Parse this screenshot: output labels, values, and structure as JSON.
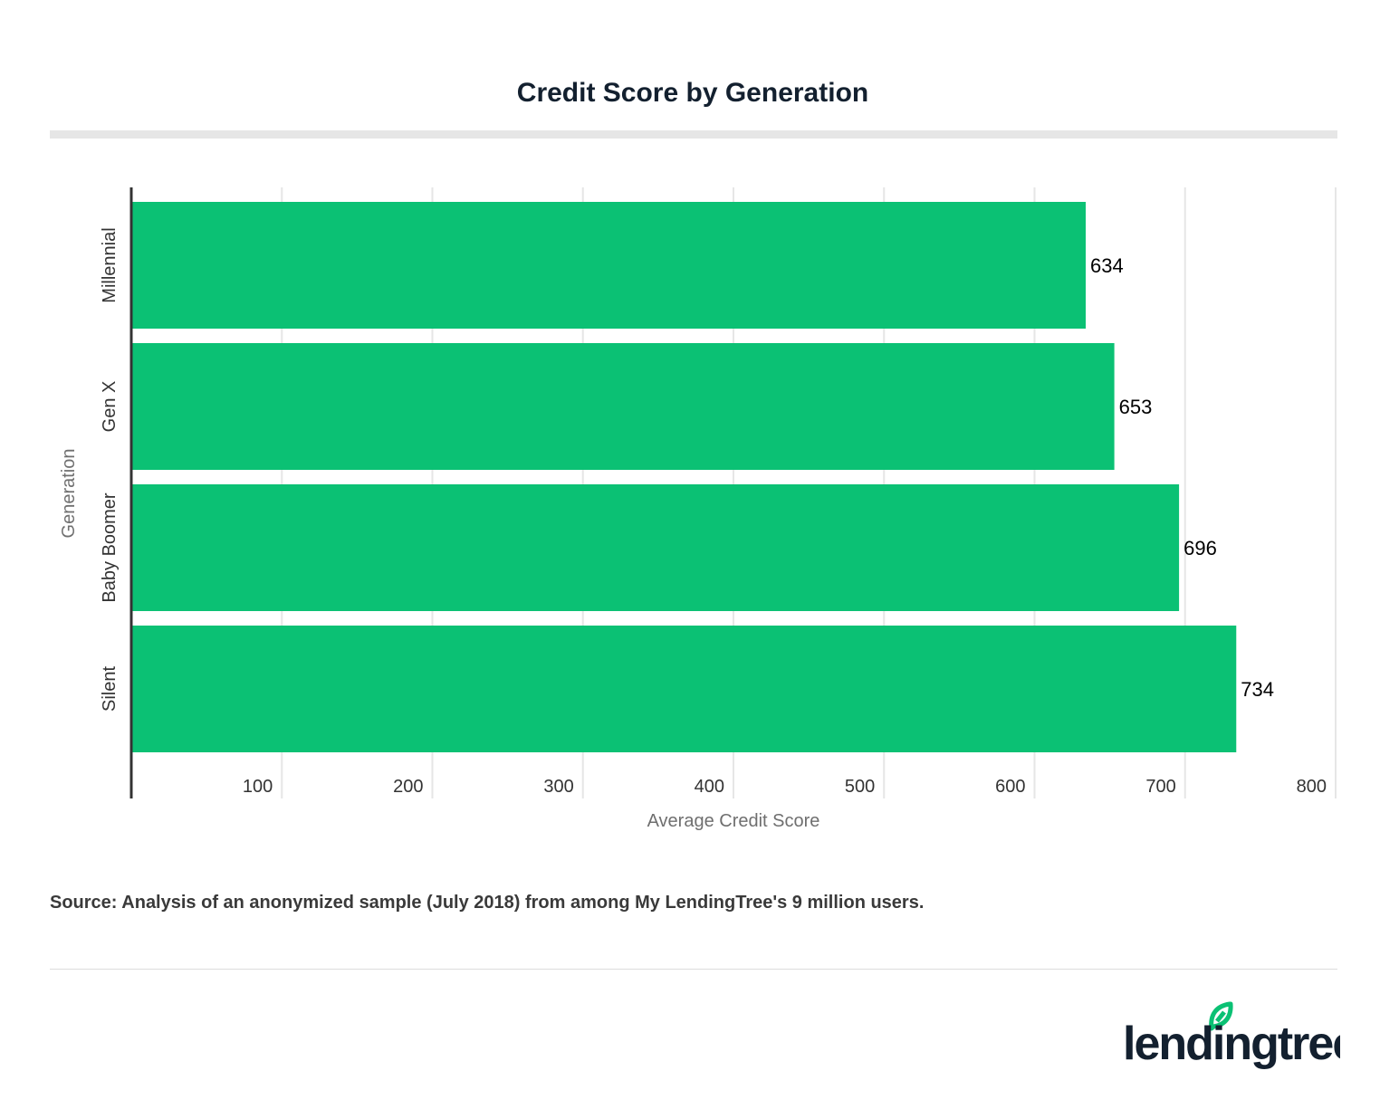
{
  "chart_data": {
    "type": "bar",
    "orientation": "horizontal",
    "title": "Credit Score by Generation",
    "categories": [
      "Millennial",
      "Gen X",
      "Baby Boomer",
      "Silent"
    ],
    "values": [
      634,
      653,
      696,
      734
    ],
    "data_labels": [
      "634",
      "653",
      "696",
      "734"
    ],
    "xlabel": "Average Credit Score",
    "ylabel": "Generation",
    "xlim": [
      0,
      800
    ],
    "xticks": [
      100,
      200,
      300,
      400,
      500,
      600,
      700,
      800
    ],
    "grid": true,
    "bar_color": "#0bc174"
  },
  "footer": {
    "source": "Source: Analysis of an anonymized sample (July 2018) from among My LendingTree's 9 million users."
  },
  "logo": {
    "text": "lendingtree",
    "leaf_color": "#0bc174",
    "text_color": "#13202f"
  }
}
